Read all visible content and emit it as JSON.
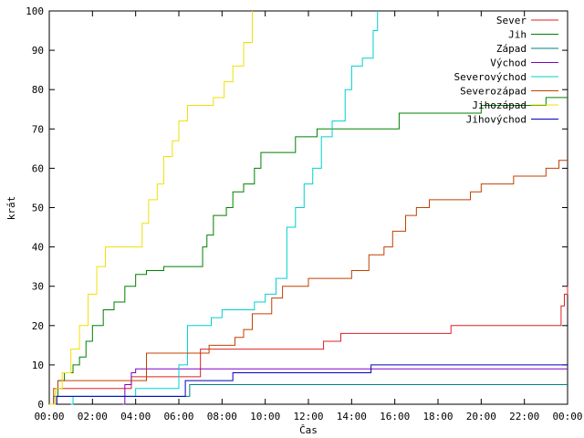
{
  "chart_data": {
    "type": "line",
    "title": "",
    "xlabel": "Čas",
    "ylabel": "krát",
    "ylim": [
      0,
      100
    ],
    "y_ticks": [
      "0",
      "10",
      "20",
      "30",
      "40",
      "50",
      "60",
      "70",
      "80",
      "90",
      "100"
    ],
    "x_range_hours": [
      0,
      24
    ],
    "x_ticks": [
      "00:00",
      "02:00",
      "04:00",
      "06:00",
      "08:00",
      "10:00",
      "12:00",
      "14:00",
      "16:00",
      "18:00",
      "20:00",
      "22:00",
      "00:00"
    ],
    "grid": false,
    "legend_position": "top-right",
    "series": [
      {
        "name": "Sever",
        "color": "#e02020",
        "x": [
          0.1,
          0.3,
          3.8,
          7.0,
          8.7,
          12.7,
          13.5,
          16.5,
          18.6,
          19.0,
          23.6,
          23.7,
          23.85,
          24.0
        ],
        "values": [
          0,
          4,
          7,
          14,
          14,
          16,
          18,
          18,
          20,
          20,
          20,
          25,
          28,
          30
        ]
      },
      {
        "name": "Jih",
        "color": "#008000",
        "x": [
          0.0,
          0.2,
          0.4,
          0.7,
          1.1,
          1.4,
          1.7,
          2.0,
          2.5,
          3.0,
          3.5,
          4.0,
          4.5,
          4.8,
          5.3,
          6.0,
          6.7,
          7.1,
          7.3,
          7.6,
          8.2,
          8.5,
          9.0,
          9.5,
          9.8,
          10.5,
          11.0,
          11.4,
          12.0,
          12.4,
          14.2,
          16.2,
          18.9,
          20.0,
          23.0,
          24.0
        ],
        "values": [
          0,
          2,
          6,
          8,
          10,
          12,
          16,
          20,
          24,
          26,
          30,
          33,
          34,
          34,
          35,
          35,
          35,
          40,
          43,
          48,
          50,
          54,
          56,
          60,
          64,
          64,
          64,
          68,
          68,
          70,
          70,
          74,
          74,
          76,
          78,
          78
        ]
      },
      {
        "name": "Západ",
        "color": "#008080",
        "x": [
          0.15,
          0.3,
          6.1,
          6.5,
          24.0
        ],
        "values": [
          0,
          2,
          2,
          5,
          5
        ]
      },
      {
        "name": "Východ",
        "color": "#8000c0",
        "x": [
          3.4,
          3.5,
          3.8,
          4.0,
          24.0
        ],
        "values": [
          0,
          5,
          8,
          9,
          9
        ]
      },
      {
        "name": "Severovýchod",
        "color": "#00d0d0",
        "x": [
          1.0,
          1.1,
          3.8,
          4.0,
          5.5,
          6.0,
          6.4,
          7.0,
          7.5,
          8.0,
          8.6,
          9.5,
          10.0,
          10.5,
          11.0,
          11.4,
          11.8,
          12.2,
          12.6,
          13.1,
          13.7,
          14.0,
          14.5,
          15.0,
          15.2
        ],
        "values": [
          0,
          2,
          2,
          4,
          4,
          10,
          20,
          20,
          22,
          24,
          24,
          26,
          28,
          32,
          45,
          50,
          56,
          60,
          68,
          72,
          80,
          86,
          88,
          95,
          100
        ]
      },
      {
        "name": "Severozápad",
        "color": "#c04000",
        "x": [
          0.0,
          0.2,
          0.4,
          3.5,
          4.5,
          6.8,
          7.4,
          8.2,
          8.6,
          9.0,
          9.4,
          10.0,
          10.3,
          10.8,
          11.5,
          12.0,
          13.5,
          14.0,
          14.8,
          15.5,
          15.9,
          16.5,
          17.0,
          17.6,
          18.1,
          19.0,
          19.5,
          20.0,
          21.0,
          21.5,
          22.0,
          23.0,
          23.6,
          24.0
        ],
        "values": [
          0,
          4,
          6,
          6,
          13,
          13,
          15,
          15,
          17,
          19,
          23,
          23,
          27,
          30,
          30,
          32,
          32,
          34,
          38,
          40,
          44,
          48,
          50,
          52,
          52,
          52,
          54,
          56,
          56,
          58,
          58,
          60,
          62,
          62
        ]
      },
      {
        "name": "Jihozápad",
        "color": "#f0e000",
        "x": [
          0.0,
          0.3,
          0.6,
          1.0,
          1.4,
          1.8,
          2.2,
          2.6,
          3.0,
          3.5,
          4.0,
          4.3,
          4.6,
          5.0,
          5.3,
          5.7,
          6.0,
          6.4,
          6.8,
          7.2,
          7.6,
          8.1,
          8.5,
          9.0,
          9.4
        ],
        "values": [
          0,
          4,
          8,
          14,
          20,
          28,
          35,
          40,
          40,
          40,
          40,
          46,
          52,
          56,
          63,
          67,
          72,
          76,
          76,
          76,
          78,
          82,
          86,
          92,
          100
        ]
      },
      {
        "name": "Jihovýchod",
        "color": "#0000c0",
        "x": [
          0.3,
          0.35,
          6.1,
          6.3,
          8.3,
          8.5,
          14.7,
          14.9,
          24.0
        ],
        "values": [
          0,
          2,
          2,
          6,
          6,
          8,
          8,
          10,
          10
        ]
      }
    ]
  }
}
